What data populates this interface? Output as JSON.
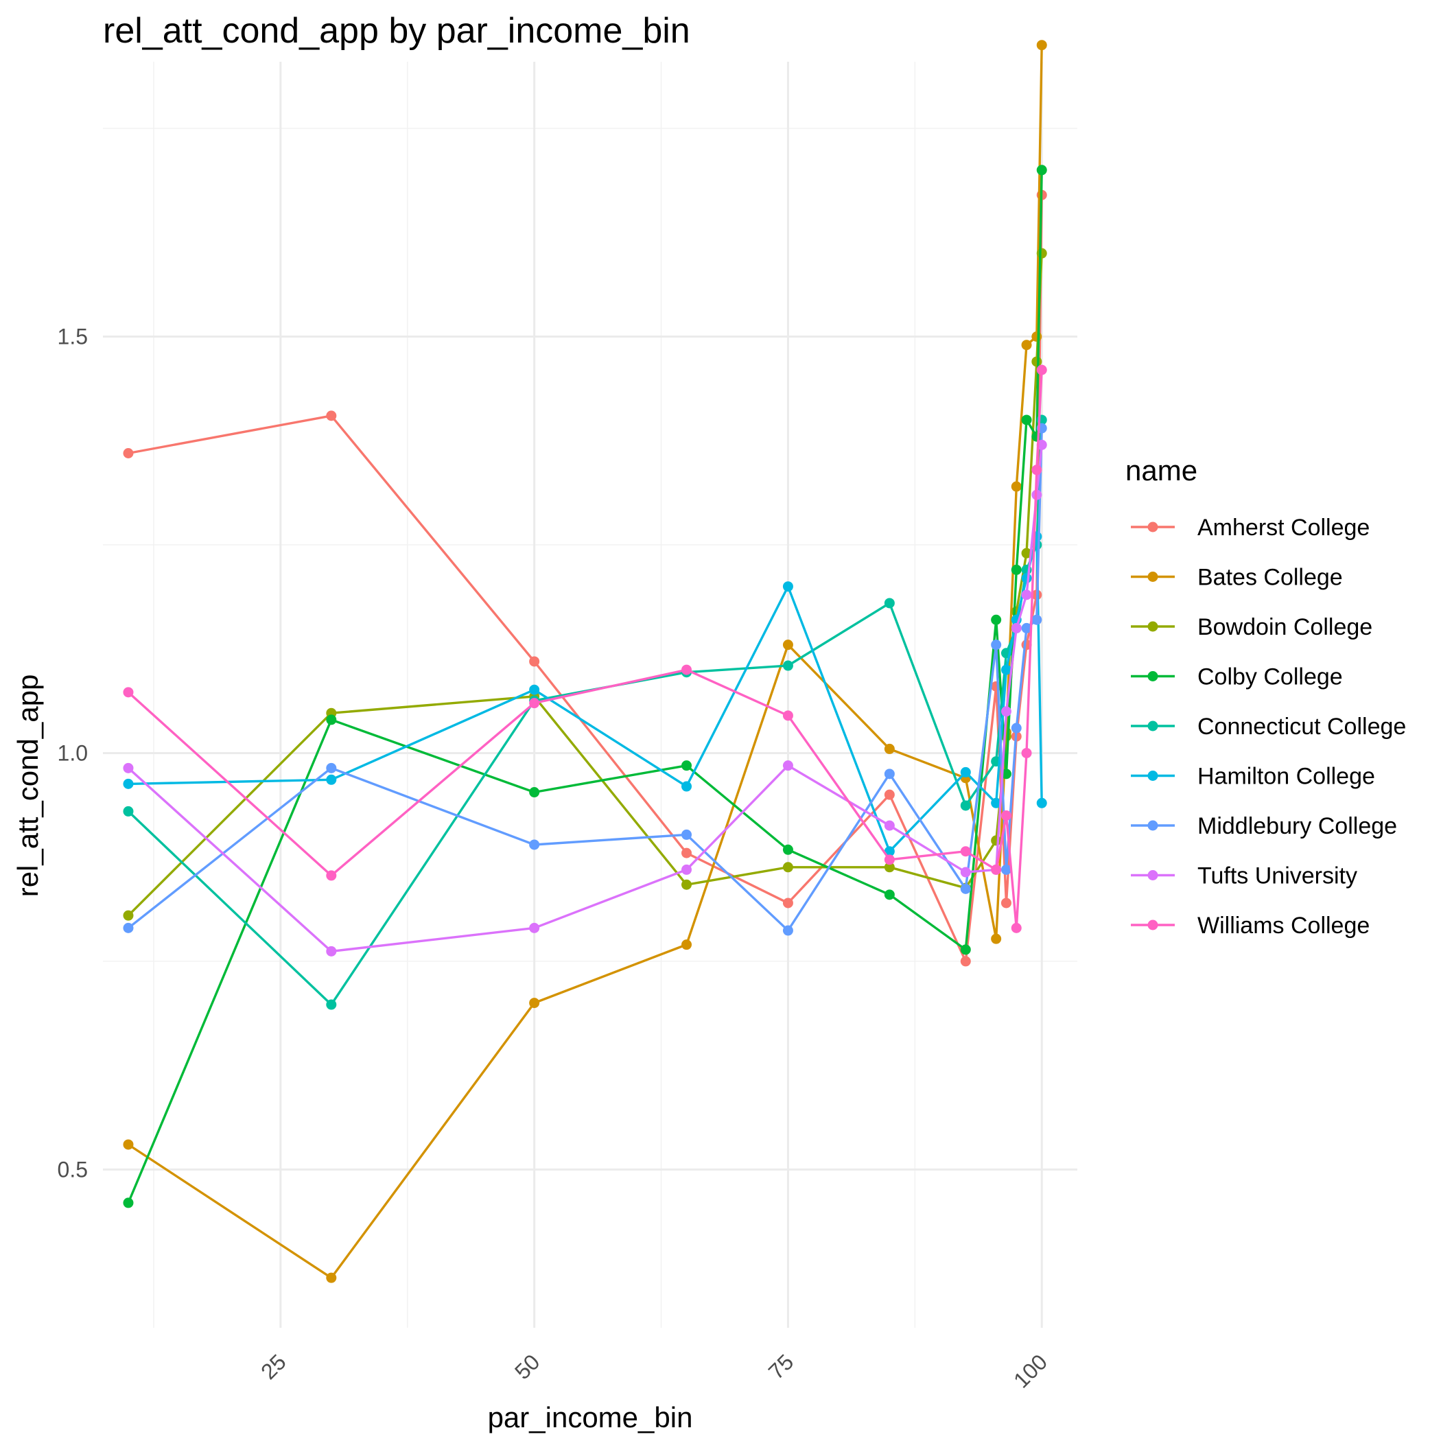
{
  "chart_data": {
    "type": "line",
    "title": "rel_att_cond_app by par_income_bin",
    "xlabel": "par_income_bin",
    "ylabel": "rel_att_cond_app",
    "xlim": [
      7.5,
      103.5
    ],
    "ylim": [
      0.31,
      1.83
    ],
    "x_ticks": [
      25,
      50,
      75,
      100
    ],
    "y_ticks": [
      0.5,
      1.0,
      1.5
    ],
    "x_tick_labels": [
      "25",
      "50",
      "75",
      "100"
    ],
    "y_tick_labels": [
      "0.5",
      "1.0",
      "1.5"
    ],
    "grid": true,
    "legend": {
      "title": "name",
      "position": "right"
    },
    "series": [
      {
        "name": "Amherst College",
        "color": "#F8766D",
        "x": [
          10,
          30,
          50,
          65,
          75,
          85,
          92.5,
          95.5,
          96.5,
          97.5,
          98.5,
          99.5,
          100
        ],
        "y": [
          1.36,
          1.405,
          1.11,
          0.88,
          0.82,
          0.95,
          0.75,
          1.08,
          0.82,
          1.02,
          1.13,
          1.19,
          1.67
        ]
      },
      {
        "name": "Bates College",
        "color": "#D39200",
        "x": [
          10,
          30,
          50,
          65,
          75,
          85,
          92.5,
          95.5,
          96.5,
          97.5,
          98.5,
          99.5,
          100
        ],
        "y": [
          0.53,
          0.37,
          0.7,
          0.77,
          1.13,
          1.005,
          0.97,
          0.777,
          1.025,
          1.32,
          1.49,
          1.5,
          1.85
        ]
      },
      {
        "name": "Bowdoin College",
        "color": "#93AA00",
        "x": [
          10,
          30,
          50,
          65,
          75,
          85,
          92.5,
          95.5,
          96.5,
          97.5,
          98.5,
          99.5,
          100
        ],
        "y": [
          0.805,
          1.048,
          1.068,
          0.842,
          0.863,
          0.863,
          0.838,
          0.895,
          1.02,
          1.17,
          1.24,
          1.47,
          1.6
        ]
      },
      {
        "name": "Colby College",
        "color": "#00BA38",
        "x": [
          10,
          30,
          50,
          65,
          75,
          85,
          92.5,
          95.5,
          96.5,
          97.5,
          98.5,
          99.5,
          100
        ],
        "y": [
          0.46,
          1.04,
          0.953,
          0.985,
          0.884,
          0.83,
          0.764,
          1.16,
          0.975,
          1.22,
          1.4,
          1.38,
          1.7
        ]
      },
      {
        "name": "Connecticut College",
        "color": "#00C19F",
        "x": [
          10,
          30,
          50,
          65,
          75,
          85,
          92.5,
          95.5,
          96.5,
          97.5,
          98.5,
          99.5,
          100
        ],
        "y": [
          0.93,
          0.698,
          1.063,
          1.097,
          1.105,
          1.18,
          0.937,
          0.99,
          1.12,
          1.15,
          1.22,
          1.25,
          1.4
        ]
      },
      {
        "name": "Hamilton College",
        "color": "#00B9E3",
        "x": [
          10,
          30,
          50,
          65,
          75,
          85,
          92.5,
          95.5,
          96.5,
          97.5,
          98.5,
          99.5,
          100
        ],
        "y": [
          0.963,
          0.968,
          1.076,
          0.96,
          1.2,
          0.882,
          0.977,
          0.94,
          1.1,
          1.16,
          1.21,
          1.26,
          0.94
        ]
      },
      {
        "name": "Middlebury College",
        "color": "#619CFF",
        "x": [
          10,
          30,
          50,
          65,
          75,
          85,
          92.5,
          95.5,
          96.5,
          97.5,
          98.5,
          99.5,
          100
        ],
        "y": [
          0.79,
          0.982,
          0.89,
          0.902,
          0.787,
          0.975,
          0.837,
          1.13,
          0.86,
          1.03,
          1.15,
          1.16,
          1.39
        ]
      },
      {
        "name": "Tufts University",
        "color": "#DB72FB",
        "x": [
          10,
          30,
          50,
          65,
          75,
          85,
          92.5,
          95.5,
          96.5,
          97.5,
          98.5,
          99.5,
          100
        ],
        "y": [
          0.982,
          0.762,
          0.79,
          0.86,
          0.985,
          0.913,
          0.857,
          0.86,
          1.05,
          1.15,
          1.19,
          1.31,
          1.37
        ]
      },
      {
        "name": "Williams College",
        "color": "#FF61C3",
        "x": [
          10,
          30,
          50,
          65,
          75,
          85,
          92.5,
          95.5,
          96.5,
          97.5,
          98.5,
          99.5,
          100
        ],
        "y": [
          1.073,
          0.853,
          1.06,
          1.1,
          1.045,
          0.872,
          0.882,
          0.86,
          0.925,
          0.79,
          1.0,
          1.34,
          1.46
        ]
      }
    ]
  }
}
